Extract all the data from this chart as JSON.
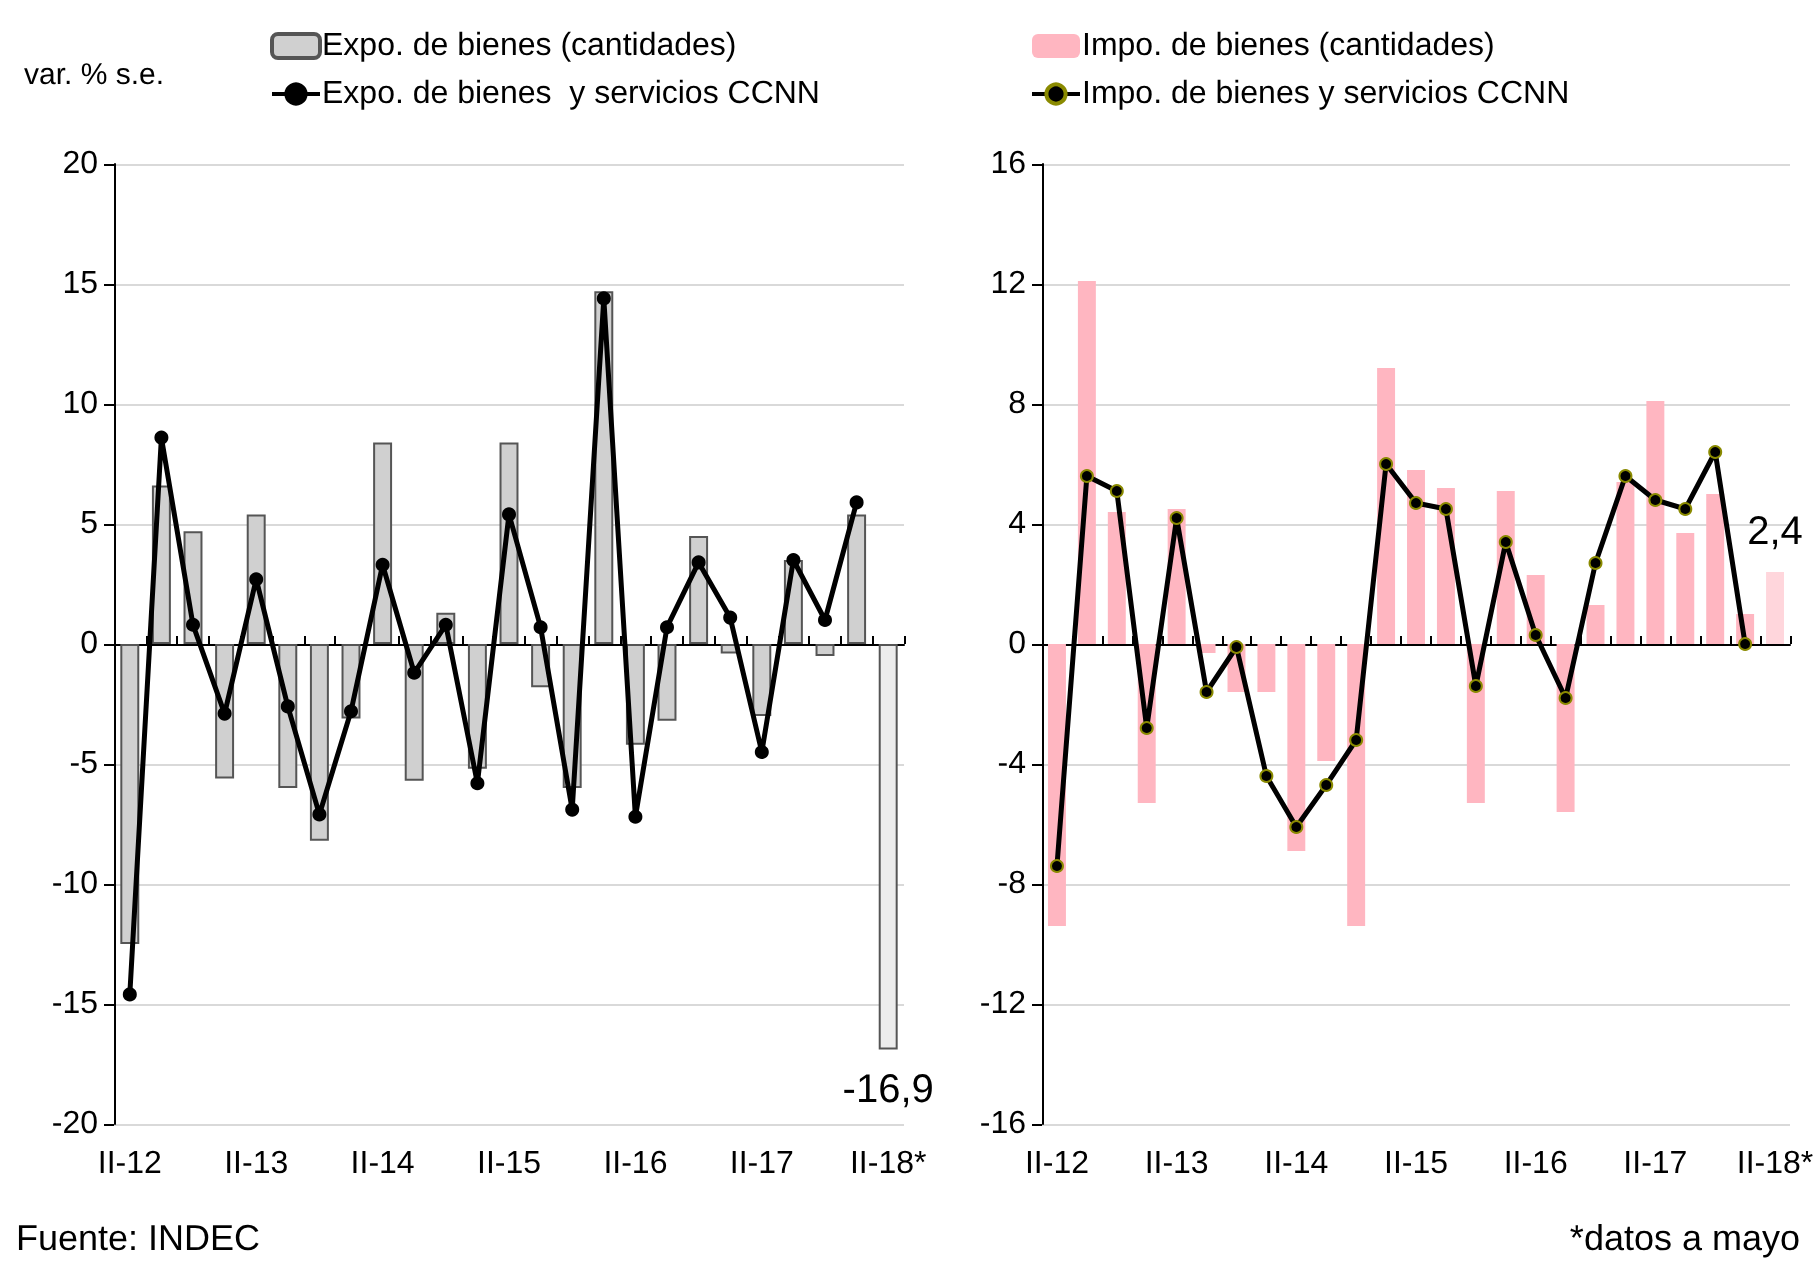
{
  "chart_data": [
    {
      "type": "bar",
      "ylabel": "var. % s.e.",
      "categories": [
        "II-12",
        null,
        null,
        null,
        "II-13",
        null,
        null,
        null,
        "II-14",
        null,
        null,
        null,
        "II-15",
        null,
        null,
        null,
        "II-16",
        null,
        null,
        null,
        "II-17",
        null,
        null,
        null,
        "II-18*"
      ],
      "series": [
        {
          "name": "Expo. de bienes (cantidades)",
          "color": "#d0d0d0",
          "colors": [
            "#d0d0d0",
            "#d0d0d0",
            "#d0d0d0",
            "#d0d0d0",
            "#d0d0d0",
            "#d0d0d0",
            "#d0d0d0",
            "#d0d0d0",
            "#d0d0d0",
            "#d0d0d0",
            "#d0d0d0",
            "#d0d0d0",
            "#d0d0d0",
            "#d0d0d0",
            "#d0d0d0",
            "#d0d0d0",
            "#d0d0d0",
            "#d0d0d0",
            "#d0d0d0",
            "#d0d0d0",
            "#d0d0d0",
            "#d0d0d0",
            "#d0d0d0",
            "#d0d0d0",
            "#ececec"
          ],
          "values": [
            -12.5,
            6.6,
            4.7,
            -5.6,
            5.4,
            -6.0,
            -8.2,
            -3.1,
            8.4,
            -5.7,
            1.3,
            -5.2,
            8.4,
            -1.8,
            -6.0,
            14.7,
            -4.2,
            -3.2,
            4.5,
            -0.4,
            -3.0,
            3.5,
            -0.5,
            5.4,
            -16.9
          ],
          "value_labels": [
            null,
            null,
            null,
            null,
            null,
            null,
            null,
            null,
            null,
            null,
            null,
            null,
            null,
            null,
            null,
            null,
            null,
            null,
            null,
            null,
            null,
            null,
            null,
            null,
            "-16,9"
          ]
        },
        {
          "name": "Expo. de bienes  y servicios CCNN",
          "type": "line",
          "color": "#000000",
          "values": [
            -14.6,
            8.6,
            0.8,
            -2.9,
            2.7,
            -2.6,
            -7.1,
            -2.8,
            3.3,
            -1.2,
            0.8,
            -5.8,
            5.4,
            0.7,
            -6.9,
            14.4,
            -7.2,
            0.7,
            3.4,
            1.1,
            -4.5,
            3.5,
            1.0,
            5.9,
            null
          ]
        }
      ],
      "ylim": [
        -20,
        20
      ],
      "yticks": [
        -20,
        -15,
        -10,
        -5,
        0,
        5,
        10,
        15,
        20
      ],
      "grid": "y",
      "legend": "top left",
      "marker": "circle",
      "line_style": "solid",
      "annotations": [
        "Fuente: INDEC"
      ]
    },
    {
      "type": "bar",
      "categories": [
        "II-12",
        null,
        null,
        null,
        "II-13",
        null,
        null,
        null,
        "II-14",
        null,
        null,
        null,
        "II-15",
        null,
        null,
        null,
        "II-16",
        null,
        null,
        null,
        "II-17",
        null,
        null,
        null,
        "II-18*"
      ],
      "series": [
        {
          "name": "Impo. de bienes (cantidades)",
          "color": "#ffb6c1",
          "colors": [
            "#ffb6c1",
            "#ffb6c1",
            "#ffb6c1",
            "#ffb6c1",
            "#ffb6c1",
            "#ffb6c1",
            "#ffb6c1",
            "#ffb6c1",
            "#ffb6c1",
            "#ffb6c1",
            "#ffb6c1",
            "#ffb6c1",
            "#ffb6c1",
            "#ffb6c1",
            "#ffb6c1",
            "#ffb6c1",
            "#ffb6c1",
            "#ffb6c1",
            "#ffb6c1",
            "#ffb6c1",
            "#ffb6c1",
            "#ffb6c1",
            "#ffb6c1",
            "#ffb6c1",
            "#ffd6dc"
          ],
          "values": [
            -9.4,
            12.1,
            4.4,
            -5.3,
            4.5,
            -0.3,
            -1.6,
            -1.6,
            -6.9,
            -3.9,
            -9.4,
            9.2,
            5.8,
            5.2,
            -5.3,
            5.1,
            2.3,
            -5.6,
            1.3,
            5.4,
            8.1,
            3.7,
            5.0,
            1.0,
            2.4
          ],
          "value_labels": [
            null,
            null,
            null,
            null,
            null,
            null,
            null,
            null,
            null,
            null,
            null,
            null,
            null,
            null,
            null,
            null,
            null,
            null,
            null,
            null,
            null,
            null,
            null,
            null,
            "2,4"
          ]
        },
        {
          "name": "Impo. de bienes y servicios CCNN",
          "type": "line",
          "color": "#000000",
          "values": [
            -7.4,
            5.6,
            5.1,
            -2.8,
            4.2,
            -1.6,
            -0.1,
            -4.4,
            -6.1,
            -4.7,
            -3.2,
            6.0,
            4.7,
            4.5,
            -1.4,
            3.4,
            0.3,
            -1.8,
            2.7,
            5.6,
            4.8,
            4.5,
            6.4,
            0.0,
            null
          ]
        }
      ],
      "ylim": [
        -16,
        16
      ],
      "yticks": [
        -16,
        -12,
        -8,
        -4,
        0,
        4,
        8,
        12,
        16
      ],
      "grid": "y",
      "legend": "top left",
      "marker": "circle",
      "line_style": "solid",
      "annotations": [
        "*datos a mayo"
      ]
    }
  ]
}
